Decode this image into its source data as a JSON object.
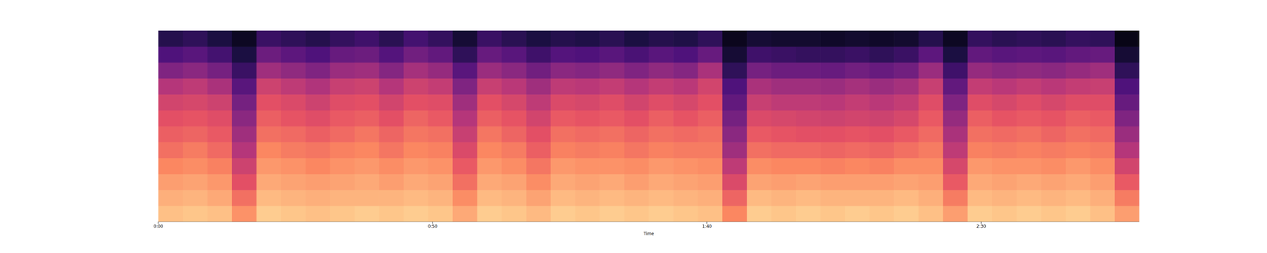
{
  "chart_data": {
    "type": "heatmap",
    "xlabel": "Time",
    "xlim": [
      0,
      178.8
    ],
    "ylim": [
      0,
      12
    ],
    "xticks": [
      {
        "value": 0,
        "label": "0:00"
      },
      {
        "value": 50,
        "label": "0:50"
      },
      {
        "value": 100,
        "label": "1:40"
      },
      {
        "value": 150,
        "label": "2:30"
      }
    ],
    "tick_labels": "x",
    "x": [
      0,
      4.47,
      8.94,
      13.41,
      17.88,
      22.35,
      26.82,
      31.29,
      35.76,
      40.23,
      44.7,
      49.17,
      53.64,
      58.11,
      62.58,
      67.05,
      71.52,
      75.99,
      80.46,
      84.93,
      89.4,
      93.87,
      98.34,
      102.81,
      107.28,
      111.75,
      116.22,
      120.69,
      125.16,
      129.63,
      134.1,
      138.57,
      143.04,
      147.51,
      151.98,
      156.45,
      160.92,
      165.39,
      169.86,
      174.33
    ],
    "y": [
      0,
      1,
      2,
      3,
      4,
      5,
      6,
      7,
      8,
      9,
      10,
      11
    ],
    "color_range": [
      -80,
      0
    ],
    "cells": [
      [
        -10,
        -13,
        -16,
        -20,
        -24,
        -27,
        -30,
        -34,
        -40,
        -50,
        -60,
        -68
      ],
      [
        -9,
        -12,
        -15,
        -19,
        -22,
        -26,
        -29,
        -33,
        -38,
        -48,
        -58,
        -66
      ],
      [
        -10,
        -14,
        -17,
        -21,
        -25,
        -28,
        -31,
        -35,
        -42,
        -52,
        -62,
        -70
      ],
      [
        -18,
        -24,
        -30,
        -35,
        -40,
        -44,
        -48,
        -52,
        -58,
        -64,
        -70,
        -75
      ],
      [
        -8,
        -11,
        -14,
        -17,
        -20,
        -24,
        -27,
        -30,
        -35,
        -44,
        -54,
        -64
      ],
      [
        -9,
        -12,
        -15,
        -18,
        -22,
        -25,
        -29,
        -32,
        -38,
        -47,
        -57,
        -66
      ],
      [
        -10,
        -13,
        -16,
        -20,
        -23,
        -27,
        -31,
        -35,
        -41,
        -50,
        -60,
        -68
      ],
      [
        -9,
        -12,
        -15,
        -18,
        -21,
        -25,
        -28,
        -31,
        -36,
        -45,
        -55,
        -65
      ],
      [
        -8,
        -12,
        -14,
        -17,
        -20,
        -23,
        -27,
        -30,
        -35,
        -44,
        -54,
        -63
      ],
      [
        -9,
        -12,
        -16,
        -19,
        -23,
        -26,
        -30,
        -34,
        -40,
        -49,
        -59,
        -67
      ],
      [
        -8,
        -11,
        -14,
        -17,
        -20,
        -23,
        -26,
        -30,
        -35,
        -43,
        -53,
        -62
      ],
      [
        -9,
        -12,
        -15,
        -18,
        -21,
        -24,
        -28,
        -31,
        -37,
        -46,
        -56,
        -65
      ],
      [
        -14,
        -19,
        -24,
        -28,
        -32,
        -36,
        -40,
        -44,
        -50,
        -58,
        -66,
        -72
      ],
      [
        -8,
        -11,
        -14,
        -17,
        -20,
        -23,
        -27,
        -30,
        -36,
        -45,
        -55,
        -64
      ],
      [
        -9,
        -12,
        -15,
        -19,
        -22,
        -26,
        -29,
        -33,
        -39,
        -48,
        -58,
        -67
      ],
      [
        -11,
        -15,
        -19,
        -23,
        -27,
        -30,
        -34,
        -38,
        -44,
        -53,
        -63,
        -70
      ],
      [
        -8,
        -11,
        -14,
        -17,
        -21,
        -24,
        -28,
        -32,
        -38,
        -48,
        -59,
        -68
      ],
      [
        -9,
        -12,
        -15,
        -18,
        -22,
        -25,
        -29,
        -33,
        -39,
        -49,
        -60,
        -69
      ],
      [
        -8,
        -11,
        -14,
        -18,
        -21,
        -24,
        -28,
        -31,
        -37,
        -47,
        -58,
        -67
      ],
      [
        -9,
        -12,
        -16,
        -19,
        -23,
        -26,
        -30,
        -34,
        -40,
        -50,
        -61,
        -70
      ],
      [
        -8,
        -11,
        -14,
        -17,
        -21,
        -24,
        -27,
        -31,
        -37,
        -47,
        -58,
        -68
      ],
      [
        -9,
        -12,
        -15,
        -18,
        -22,
        -25,
        -29,
        -33,
        -39,
        -49,
        -60,
        -69
      ],
      [
        -10,
        -13,
        -16,
        -19,
        -22,
        -24,
        -27,
        -30,
        -34,
        -42,
        -55,
        -66
      ],
      [
        -20,
        -26,
        -32,
        -38,
        -44,
        -48,
        -52,
        -56,
        -60,
        -66,
        -72,
        -76
      ],
      [
        -8,
        -11,
        -15,
        -19,
        -24,
        -28,
        -32,
        -36,
        -42,
        -52,
        -63,
        -72
      ],
      [
        -9,
        -12,
        -16,
        -20,
        -25,
        -29,
        -33,
        -38,
        -44,
        -54,
        -64,
        -73
      ],
      [
        -8,
        -11,
        -15,
        -20,
        -25,
        -30,
        -34,
        -38,
        -44,
        -54,
        -65,
        -73
      ],
      [
        -9,
        -12,
        -16,
        -21,
        -26,
        -30,
        -35,
        -39,
        -45,
        -55,
        -65,
        -74
      ],
      [
        -8,
        -12,
        -16,
        -20,
        -25,
        -29,
        -34,
        -37,
        -43,
        -53,
        -64,
        -73
      ],
      [
        -9,
        -12,
        -16,
        -21,
        -26,
        -30,
        -35,
        -39,
        -45,
        -55,
        -66,
        -74
      ],
      [
        -8,
        -11,
        -15,
        -19,
        -24,
        -28,
        -33,
        -37,
        -43,
        -53,
        -64,
        -73
      ],
      [
        -10,
        -13,
        -16,
        -19,
        -22,
        -25,
        -28,
        -31,
        -36,
        -45,
        -57,
        -68
      ],
      [
        -16,
        -22,
        -28,
        -33,
        -38,
        -42,
        -46,
        -50,
        -56,
        -63,
        -70,
        -75
      ],
      [
        -8,
        -11,
        -14,
        -17,
        -21,
        -24,
        -27,
        -31,
        -37,
        -46,
        -56,
        -65
      ],
      [
        -9,
        -12,
        -15,
        -18,
        -22,
        -25,
        -29,
        -33,
        -39,
        -48,
        -58,
        -67
      ],
      [
        -8,
        -11,
        -14,
        -18,
        -21,
        -24,
        -28,
        -31,
        -37,
        -47,
        -57,
        -66
      ],
      [
        -9,
        -12,
        -15,
        -19,
        -22,
        -26,
        -29,
        -33,
        -39,
        -48,
        -58,
        -67
      ],
      [
        -8,
        -11,
        -14,
        -17,
        -21,
        -24,
        -27,
        -31,
        -37,
        -46,
        -56,
        -65
      ],
      [
        -10,
        -13,
        -16,
        -19,
        -22,
        -25,
        -28,
        -31,
        -36,
        -44,
        -55,
        -66
      ],
      [
        -16,
        -22,
        -28,
        -34,
        -40,
        -45,
        -50,
        -55,
        -60,
        -66,
        -72,
        -77
      ]
    ]
  }
}
